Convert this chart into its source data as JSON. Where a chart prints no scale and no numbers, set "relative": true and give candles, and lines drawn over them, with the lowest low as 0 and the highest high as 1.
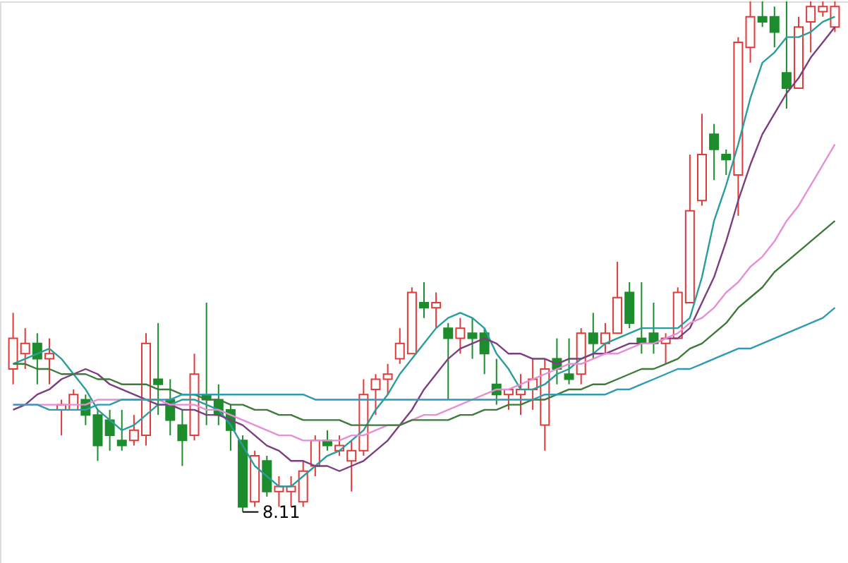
{
  "chart_data": {
    "type": "candlestick",
    "relative": true,
    "categories": [
      null,
      null,
      null,
      null,
      null,
      null,
      null,
      null,
      null,
      null,
      null,
      null,
      null,
      null,
      null,
      null,
      null,
      null,
      null,
      null,
      null,
      null,
      null,
      null,
      null,
      null,
      null,
      null,
      null,
      null,
      null,
      null,
      null,
      null,
      null,
      null,
      null,
      null,
      null,
      null,
      null,
      null,
      null,
      null,
      null,
      null,
      null,
      null,
      null,
      null,
      null,
      null,
      null,
      null,
      null,
      null,
      null,
      null,
      null,
      null,
      null,
      null,
      null,
      null,
      null,
      null,
      null,
      null,
      null
    ],
    "ohlc": [
      [
        0.28,
        0.39,
        0.25,
        0.34
      ],
      [
        0.31,
        0.36,
        0.28,
        0.33
      ],
      [
        0.33,
        0.35,
        0.25,
        0.3
      ],
      [
        0.3,
        0.34,
        0.25,
        0.31
      ],
      [
        0.2,
        0.22,
        0.15,
        0.21
      ],
      [
        0.2,
        0.24,
        0.2,
        0.23
      ],
      [
        0.22,
        0.23,
        0.17,
        0.19
      ],
      [
        0.19,
        0.2,
        0.1,
        0.13
      ],
      [
        0.18,
        0.2,
        0.12,
        0.15
      ],
      [
        0.14,
        0.2,
        0.12,
        0.13
      ],
      [
        0.14,
        0.19,
        0.13,
        0.16
      ],
      [
        0.15,
        0.35,
        0.13,
        0.33
      ],
      [
        0.26,
        0.37,
        0.19,
        0.25
      ],
      [
        0.22,
        0.26,
        0.15,
        0.18
      ],
      [
        0.17,
        0.2,
        0.09,
        0.14
      ],
      [
        0.15,
        0.31,
        0.14,
        0.27
      ],
      [
        0.23,
        0.41,
        0.17,
        0.22
      ],
      [
        0.22,
        0.25,
        0.17,
        0.19
      ],
      [
        0.2,
        0.21,
        0.12,
        0.16
      ],
      [
        0.14,
        0.15,
        0,
        0.01
      ],
      [
        0.02,
        0.12,
        0.01,
        0.11
      ],
      [
        0.1,
        0.11,
        0.03,
        0.04
      ],
      [
        0.04,
        0.07,
        0.01,
        0.05
      ],
      [
        0.04,
        0.07,
        0.01,
        0.05
      ],
      [
        0.02,
        0.1,
        0.01,
        0.08
      ],
      [
        0.09,
        0.15,
        0.07,
        0.14
      ],
      [
        0.14,
        0.16,
        0.12,
        0.13
      ],
      [
        0.12,
        0.15,
        0.11,
        0.13
      ],
      [
        0.1,
        0.14,
        0.04,
        0.12
      ],
      [
        0.12,
        0.26,
        0.11,
        0.23
      ],
      [
        0.24,
        0.27,
        0.19,
        0.26
      ],
      [
        0.26,
        0.29,
        0.23,
        0.27
      ],
      [
        0.3,
        0.36,
        0.29,
        0.33
      ],
      [
        0.31,
        0.44,
        0.31,
        0.43
      ],
      [
        0.41,
        0.45,
        0.38,
        0.4
      ],
      [
        0.4,
        0.43,
        0.36,
        0.41
      ],
      [
        0.36,
        0.37,
        0.22,
        0.34
      ],
      [
        0.34,
        0.38,
        0.31,
        0.36
      ],
      [
        0.35,
        0.38,
        0.3,
        0.34
      ],
      [
        0.35,
        0.36,
        0.27,
        0.31
      ],
      [
        0.25,
        0.3,
        0.21,
        0.23
      ],
      [
        0.23,
        0.24,
        0.2,
        0.24
      ],
      [
        0.23,
        0.27,
        0.19,
        0.24
      ],
      [
        0.24,
        0.3,
        0.2,
        0.26
      ],
      [
        0.17,
        0.3,
        0.12,
        0.28
      ],
      [
        0.3,
        0.34,
        0.25,
        0.28
      ],
      [
        0.27,
        0.34,
        0.25,
        0.26
      ],
      [
        0.27,
        0.36,
        0.25,
        0.35
      ],
      [
        0.35,
        0.39,
        0.3,
        0.33
      ],
      [
        0.33,
        0.37,
        0.31,
        0.35
      ],
      [
        0.35,
        0.49,
        0.35,
        0.42
      ],
      [
        0.43,
        0.45,
        0.36,
        0.37
      ],
      [
        0.34,
        0.45,
        0.31,
        0.33
      ],
      [
        0.35,
        0.41,
        0.31,
        0.33
      ],
      [
        0.33,
        0.35,
        0.29,
        0.34
      ],
      [
        0.34,
        0.44,
        0.34,
        0.43
      ],
      [
        0.41,
        0.7,
        0.41,
        0.59
      ],
      [
        0.61,
        0.78,
        0.6,
        0.7
      ],
      [
        0.74,
        0.76,
        0.65,
        0.71
      ],
      [
        0.7,
        0.71,
        0.66,
        0.69
      ],
      [
        0.66,
        0.93,
        0.58,
        0.92
      ],
      [
        0.91,
        1,
        0.88,
        0.97
      ],
      [
        0.97,
        1,
        0.95,
        0.96
      ],
      [
        0.97,
        0.99,
        0.91,
        0.94
      ],
      [
        0.86,
        1,
        0.79,
        0.83
      ],
      [
        0.83,
        0.97,
        0.83,
        0.95
      ],
      [
        0.96,
        1,
        0.9,
        0.99
      ],
      [
        0.98,
        1,
        0.97,
        0.99
      ],
      [
        0.95,
        1,
        0.94,
        0.99
      ]
    ],
    "colors": [
      "#e03a3a",
      "#e03a3a",
      "#1c8c2c",
      "#e03a3a",
      "#e03a3a",
      "#e03a3a",
      "#1c8c2c",
      "#1c8c2c",
      "#1c8c2c",
      "#1c8c2c",
      "#e03a3a",
      "#e03a3a",
      "#1c8c2c",
      "#1c8c2c",
      "#1c8c2c",
      "#e03a3a",
      "#1c8c2c",
      "#1c8c2c",
      "#1c8c2c",
      "#1c8c2c",
      "#e03a3a",
      "#1c8c2c",
      "#e03a3a",
      "#e03a3a",
      "#e03a3a",
      "#e03a3a",
      "#1c8c2c",
      "#e03a3a",
      "#e03a3a",
      "#e03a3a",
      "#e03a3a",
      "#e03a3a",
      "#e03a3a",
      "#e03a3a",
      "#1c8c2c",
      "#e03a3a",
      "#1c8c2c",
      "#e03a3a",
      "#1c8c2c",
      "#1c8c2c",
      "#1c8c2c",
      "#e03a3a",
      "#e03a3a",
      "#e03a3a",
      "#e03a3a",
      "#1c8c2c",
      "#1c8c2c",
      "#e03a3a",
      "#1c8c2c",
      "#e03a3a",
      "#e03a3a",
      "#1c8c2c",
      "#1c8c2c",
      "#1c8c2c",
      "#e03a3a",
      "#e03a3a",
      "#e03a3a",
      "#e03a3a",
      "#1c8c2c",
      "#1c8c2c",
      "#e03a3a",
      "#e03a3a",
      "#1c8c2c",
      "#1c8c2c",
      "#1c8c2c",
      "#e03a3a",
      "#e03a3a",
      "#e03a3a",
      "#e03a3a"
    ],
    "series": [
      {
        "type": "line",
        "color": "#2a9d9a",
        "values": [
          0.29,
          0.3,
          0.31,
          0.32,
          0.3,
          0.27,
          0.24,
          0.2,
          0.18,
          0.16,
          0.17,
          0.19,
          0.21,
          0.21,
          0.22,
          0.22,
          0.21,
          0.2,
          0.17,
          0.13,
          0.09,
          0.07,
          0.05,
          0.05,
          0.07,
          0.09,
          0.11,
          0.12,
          0.14,
          0.16,
          0.2,
          0.23,
          0.27,
          0.3,
          0.33,
          0.36,
          0.38,
          0.39,
          0.38,
          0.36,
          0.31,
          0.28,
          0.24,
          0.24,
          0.25,
          0.27,
          0.28,
          0.3,
          0.31,
          0.33,
          0.34,
          0.35,
          0.36,
          0.36,
          0.36,
          0.36,
          0.38,
          0.46,
          0.57,
          0.64,
          0.72,
          0.81,
          0.88,
          0.9,
          0.93,
          0.93,
          0.94,
          0.96,
          0.97
        ]
      },
      {
        "type": "line",
        "color": "#7b3f7f",
        "values": [
          0.2,
          0.21,
          0.23,
          0.24,
          0.26,
          0.27,
          0.28,
          0.27,
          0.25,
          0.24,
          0.23,
          0.22,
          0.21,
          0.21,
          0.2,
          0.2,
          0.19,
          0.19,
          0.18,
          0.17,
          0.15,
          0.13,
          0.12,
          0.1,
          0.1,
          0.09,
          0.09,
          0.08,
          0.09,
          0.1,
          0.12,
          0.14,
          0.17,
          0.2,
          0.24,
          0.27,
          0.3,
          0.32,
          0.33,
          0.34,
          0.33,
          0.31,
          0.31,
          0.3,
          0.3,
          0.29,
          0.3,
          0.3,
          0.31,
          0.31,
          0.32,
          0.33,
          0.33,
          0.33,
          0.34,
          0.34,
          0.36,
          0.41,
          0.46,
          0.53,
          0.61,
          0.68,
          0.74,
          0.78,
          0.82,
          0.85,
          0.89,
          0.92,
          0.95
        ]
      },
      {
        "type": "line",
        "color": "#e58fd6",
        "values": [
          0.21,
          0.21,
          0.21,
          0.21,
          0.21,
          0.21,
          0.21,
          0.22,
          0.22,
          0.22,
          0.22,
          0.22,
          0.22,
          0.21,
          0.21,
          0.21,
          0.2,
          0.2,
          0.19,
          0.18,
          0.17,
          0.16,
          0.15,
          0.15,
          0.14,
          0.14,
          0.14,
          0.14,
          0.15,
          0.15,
          0.16,
          0.17,
          0.17,
          0.18,
          0.19,
          0.19,
          0.2,
          0.21,
          0.22,
          0.23,
          0.24,
          0.24,
          0.25,
          0.26,
          0.27,
          0.28,
          0.29,
          0.29,
          0.3,
          0.31,
          0.31,
          0.32,
          0.33,
          0.33,
          0.34,
          0.35,
          0.37,
          0.38,
          0.4,
          0.43,
          0.45,
          0.48,
          0.5,
          0.53,
          0.57,
          0.6,
          0.64,
          0.68,
          0.72
        ]
      },
      {
        "type": "line",
        "color": "#3e7a3a",
        "values": [
          0.29,
          0.29,
          0.28,
          0.28,
          0.27,
          0.27,
          0.27,
          0.26,
          0.26,
          0.25,
          0.25,
          0.25,
          0.24,
          0.24,
          0.23,
          0.23,
          0.22,
          0.22,
          0.21,
          0.21,
          0.2,
          0.2,
          0.19,
          0.19,
          0.18,
          0.18,
          0.18,
          0.18,
          0.17,
          0.17,
          0.17,
          0.17,
          0.17,
          0.18,
          0.18,
          0.18,
          0.18,
          0.19,
          0.19,
          0.2,
          0.2,
          0.21,
          0.21,
          0.22,
          0.22,
          0.23,
          0.24,
          0.24,
          0.25,
          0.25,
          0.26,
          0.27,
          0.28,
          0.28,
          0.29,
          0.3,
          0.32,
          0.33,
          0.35,
          0.37,
          0.4,
          0.42,
          0.44,
          0.47,
          0.49,
          0.51,
          0.53,
          0.55,
          0.57
        ]
      },
      {
        "type": "line",
        "color": "#2e9bb5",
        "values": [
          0.21,
          0.21,
          0.21,
          0.2,
          0.2,
          0.2,
          0.2,
          0.21,
          0.21,
          0.22,
          0.22,
          0.22,
          0.22,
          0.22,
          0.23,
          0.23,
          0.23,
          0.23,
          0.23,
          0.23,
          0.23,
          0.23,
          0.23,
          0.23,
          0.23,
          0.22,
          0.22,
          0.22,
          0.22,
          0.22,
          0.22,
          0.22,
          0.22,
          0.22,
          0.22,
          0.22,
          0.22,
          0.22,
          0.22,
          0.22,
          0.22,
          0.22,
          0.22,
          0.22,
          0.23,
          0.23,
          0.23,
          0.23,
          0.23,
          0.23,
          0.24,
          0.24,
          0.25,
          0.26,
          0.27,
          0.28,
          0.28,
          0.29,
          0.3,
          0.31,
          0.32,
          0.32,
          0.33,
          0.34,
          0.35,
          0.36,
          0.37,
          0.38,
          0.4
        ]
      }
    ],
    "annotations": [
      {
        "text": "8.11",
        "y": 0
      }
    ]
  }
}
